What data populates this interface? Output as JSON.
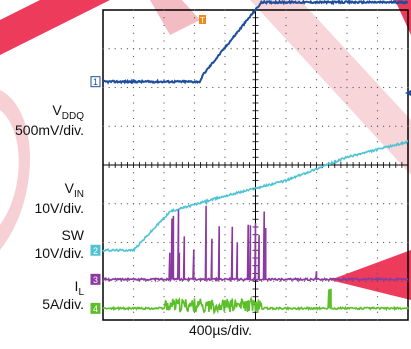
{
  "channels": [
    {
      "name": "V",
      "sub": "DDQ",
      "scale": "500mV/div.",
      "marker": "1",
      "color": "#1f4e9c"
    },
    {
      "name": "V",
      "sub": "IN",
      "scale": "10V/div.",
      "marker": "2",
      "color": "#4fc3d3"
    },
    {
      "name": "SW",
      "sub": "",
      "scale": "10V/div.",
      "marker": "3",
      "color": "#8a3aa0"
    },
    {
      "name": "I",
      "sub": "L",
      "scale": "5A/div.",
      "marker": "4",
      "color": "#5cbf2a"
    }
  ],
  "trigger_marker": "T",
  "x_scale": "400µs/div.",
  "chart_data": {
    "type": "line",
    "title": "",
    "xlabel": "400µs/div.",
    "x_divisions": 10,
    "y_divisions": 8,
    "grid": true,
    "series": [
      {
        "name": "VDDQ",
        "x_div": [
          0,
          3.2,
          3.25,
          5.2,
          10
        ],
        "y_div": [
          2.15,
          2.15,
          2.3,
          4.2,
          4.2
        ]
      },
      {
        "name": "VIN",
        "x_div": [
          0,
          1.0,
          2.2,
          4.0,
          6.0,
          8.0,
          10
        ],
        "y_div": [
          -2.2,
          -2.2,
          -1.2,
          -0.8,
          -0.4,
          0.2,
          0.6
        ]
      },
      {
        "name": "SW",
        "x_div": [
          0,
          10
        ],
        "y_div": [
          -2.95,
          -2.95
        ]
      },
      {
        "name": "IL",
        "x_div": [
          0,
          10
        ],
        "y_div": [
          -3.7,
          -3.7
        ]
      }
    ]
  }
}
